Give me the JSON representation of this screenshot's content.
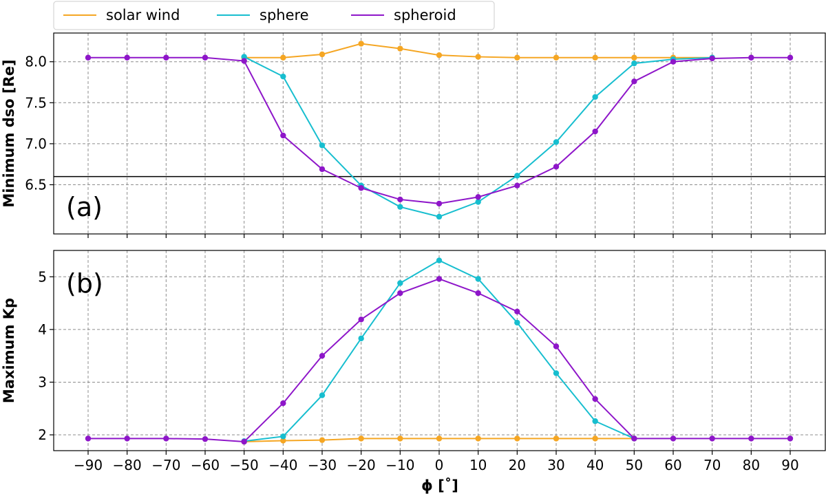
{
  "chart_data": {
    "type": "line",
    "legend": {
      "placement": "top-left, above plots",
      "entries": [
        "solar wind",
        "sphere",
        "spheroid"
      ]
    },
    "colors": {
      "solar wind": "#f5a623",
      "sphere": "#17becf",
      "spheroid": "#8e16c9"
    },
    "x": [
      -90,
      -80,
      -70,
      -60,
      -50,
      -40,
      -30,
      -20,
      -10,
      0,
      10,
      20,
      30,
      40,
      50,
      60,
      70,
      80,
      90
    ],
    "x_tick_labels": [
      "−90",
      "−80",
      "−70",
      "−60",
      "−50",
      "−40",
      "−30",
      "−20",
      "−10",
      "0",
      "10",
      "20",
      "30",
      "40",
      "50",
      "60",
      "70",
      "80",
      "90"
    ],
    "xlabel": "ϕ [˚]",
    "grid": true,
    "panels": [
      {
        "panel_label": "(a)",
        "ylabel": "Minimum dso [Re]",
        "ylim": [
          5.9,
          8.35
        ],
        "yticks": [
          6.5,
          7.0,
          7.5,
          8.0
        ],
        "ytick_labels": [
          "6.5",
          "7.0",
          "7.5",
          "8.0"
        ],
        "reference_line": 6.6,
        "series": [
          {
            "name": "solar wind",
            "values": [
              null,
              null,
              null,
              null,
              8.05,
              8.05,
              8.09,
              8.22,
              8.16,
              8.08,
              8.06,
              8.05,
              8.05,
              8.05,
              8.05,
              8.05,
              8.05,
              null,
              null
            ]
          },
          {
            "name": "sphere",
            "values": [
              null,
              null,
              null,
              null,
              8.06,
              7.82,
              6.98,
              6.49,
              6.23,
              6.11,
              6.29,
              6.61,
              7.02,
              7.57,
              7.98,
              8.03,
              8.05,
              null,
              null
            ]
          },
          {
            "name": "spheroid",
            "values": [
              8.05,
              8.05,
              8.05,
              8.05,
              8.01,
              7.1,
              6.69,
              6.46,
              6.32,
              6.27,
              6.35,
              6.49,
              6.72,
              7.15,
              7.76,
              8.0,
              8.04,
              8.05,
              8.05
            ]
          }
        ]
      },
      {
        "panel_label": "(b)",
        "ylabel": "Maximum Kp",
        "ylim": [
          1.7,
          5.5
        ],
        "yticks": [
          2,
          3,
          4,
          5
        ],
        "ytick_labels": [
          "2",
          "3",
          "4",
          "5"
        ],
        "series": [
          {
            "name": "solar wind",
            "values": [
              null,
              null,
              null,
              null,
              1.87,
              1.89,
              1.9,
              1.93,
              1.93,
              1.93,
              1.93,
              1.93,
              1.93,
              1.93,
              1.93,
              null,
              null,
              null,
              null
            ]
          },
          {
            "name": "sphere",
            "values": [
              null,
              null,
              null,
              null,
              1.88,
              1.97,
              2.75,
              3.83,
              4.88,
              5.31,
              4.96,
              4.13,
              3.17,
              2.26,
              1.93,
              null,
              null,
              null,
              null
            ]
          },
          {
            "name": "spheroid",
            "values": [
              1.93,
              1.93,
              1.93,
              1.92,
              1.87,
              2.6,
              3.5,
              4.19,
              4.69,
              4.96,
              4.69,
              4.34,
              3.68,
              2.68,
              1.93,
              1.93,
              1.93,
              1.93,
              1.93
            ]
          }
        ]
      }
    ]
  }
}
